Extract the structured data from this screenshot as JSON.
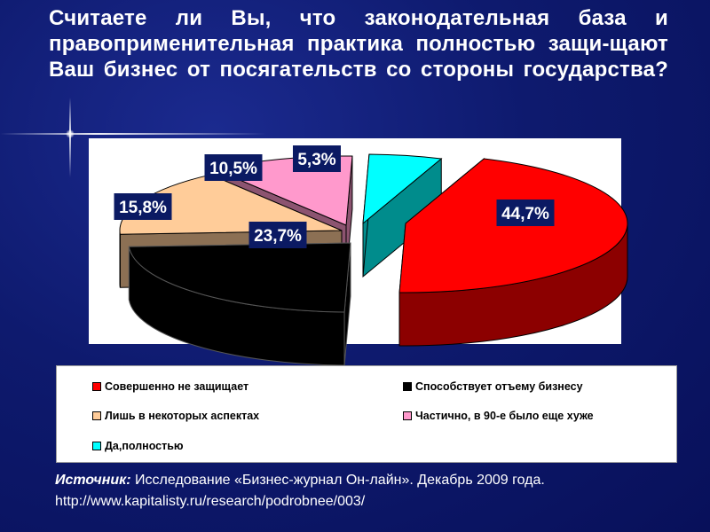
{
  "title": "Считаете ли Вы, что законодательная база и правоприменительная практика полностью защи-щают Ваш бизнес от посягательств со стороны государства?",
  "chart_data": {
    "type": "pie",
    "style": "3d-exploded",
    "slices": [
      {
        "label": "Совершенно не защищает",
        "value": 44.7,
        "value_label": "44,7%",
        "color": "#ff0000"
      },
      {
        "label": "Способствует отъему бизнесу",
        "value": 23.7,
        "value_label": "23,7%",
        "color": "#000000"
      },
      {
        "label": "Лишь в некоторых аспектах",
        "value": 15.8,
        "value_label": "15,8%",
        "color": "#ffcc99"
      },
      {
        "label": "Частично, в 90-е было еще хуже",
        "value": 10.5,
        "value_label": "10,5%",
        "color": "#ff99cc"
      },
      {
        "label": "Да,полностью",
        "value": 5.3,
        "value_label": "5,3%",
        "color": "#00ffff"
      }
    ],
    "legend_position": "bottom"
  },
  "legend": {
    "items": [
      {
        "label": "Совершенно не защищает",
        "color": "#ff0000"
      },
      {
        "label": "Способствует отъему бизнесу",
        "color": "#000000"
      },
      {
        "label": "Лишь в некоторых аспектах",
        "color": "#ffcc99"
      },
      {
        "label": "Частично, в 90-е было еще хуже",
        "color": "#ff99cc"
      },
      {
        "label": "Да,полностью",
        "color": "#00ffff"
      }
    ]
  },
  "source": {
    "label": "Источник:",
    "text": " Исследование «Бизнес-журнал Он-лайн». Декабрь 2009 года.",
    "url": "http://www.kapitalisty.ru/research/podrobnee/003/"
  }
}
